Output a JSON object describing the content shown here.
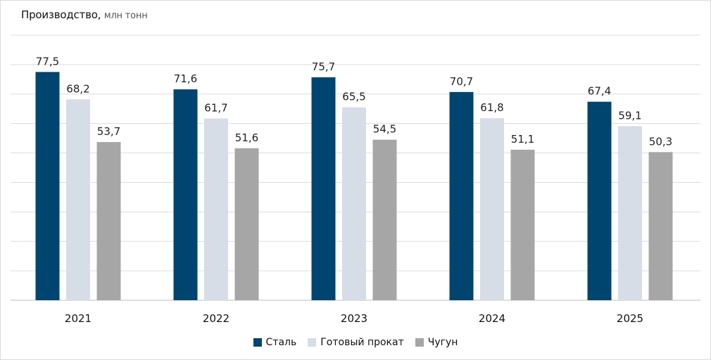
{
  "chart_data": {
    "type": "bar",
    "title": "Производство,",
    "title_unit": "млн тонн",
    "categories": [
      "2021",
      "2022",
      "2023",
      "2024",
      "2025"
    ],
    "series": [
      {
        "name": "Сталь",
        "color": "#004570",
        "values": [
          77.5,
          71.6,
          75.7,
          70.7,
          67.4
        ],
        "labels": [
          "77,5",
          "71,6",
          "75,7",
          "70,7",
          "67,4"
        ]
      },
      {
        "name": "Готовый прокат",
        "color": "#d6dde6",
        "values": [
          68.2,
          61.7,
          65.5,
          61.8,
          59.1
        ],
        "labels": [
          "68,2",
          "61,7",
          "65,5",
          "61,8",
          "59,1"
        ]
      },
      {
        "name": "Чугун",
        "color": "#a6a6a6",
        "values": [
          53.7,
          51.6,
          54.5,
          51.1,
          50.3
        ],
        "labels": [
          "53,7",
          "51,6",
          "54,5",
          "51,1",
          "50,3"
        ]
      }
    ],
    "ylim": [
      0,
      90
    ],
    "grid": true,
    "legend": "bottom"
  }
}
